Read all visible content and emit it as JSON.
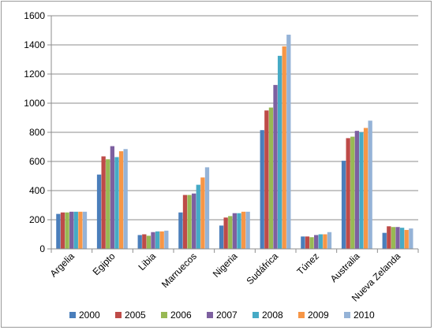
{
  "chart_data": {
    "type": "bar",
    "title": "",
    "xlabel": "",
    "ylabel": "",
    "ylim": [
      0,
      1600
    ],
    "yticks": [
      0,
      200,
      400,
      600,
      800,
      1000,
      1200,
      1400,
      1600
    ],
    "grid": true,
    "legend_position": "bottom",
    "categories": [
      "Argelia",
      "Egipto",
      "Libia",
      "Marruecos",
      "Nigeria",
      "Sudáfrica",
      "Túnez",
      "Australia",
      "Nueva Zelanda"
    ],
    "series": [
      {
        "name": "2000",
        "color": "#4a7ebb",
        "values": [
          240,
          510,
          95,
          250,
          160,
          815,
          85,
          605,
          110
        ]
      },
      {
        "name": "2005",
        "color": "#be4b48",
        "values": [
          250,
          635,
          100,
          370,
          215,
          950,
          85,
          760,
          155
        ]
      },
      {
        "name": "2006",
        "color": "#98b954",
        "values": [
          250,
          615,
          90,
          370,
          225,
          970,
          80,
          770,
          150
        ]
      },
      {
        "name": "2007",
        "color": "#7d60a0",
        "values": [
          255,
          705,
          115,
          380,
          245,
          1125,
          95,
          810,
          150
        ]
      },
      {
        "name": "2008",
        "color": "#46aac5",
        "values": [
          255,
          630,
          120,
          440,
          245,
          1325,
          100,
          800,
          145
        ]
      },
      {
        "name": "2009",
        "color": "#f79646",
        "values": [
          255,
          670,
          120,
          490,
          255,
          1390,
          100,
          830,
          130
        ]
      },
      {
        "name": "2010",
        "color": "#95b3d7",
        "values": [
          255,
          685,
          125,
          560,
          255,
          1470,
          115,
          880,
          140
        ]
      }
    ]
  }
}
